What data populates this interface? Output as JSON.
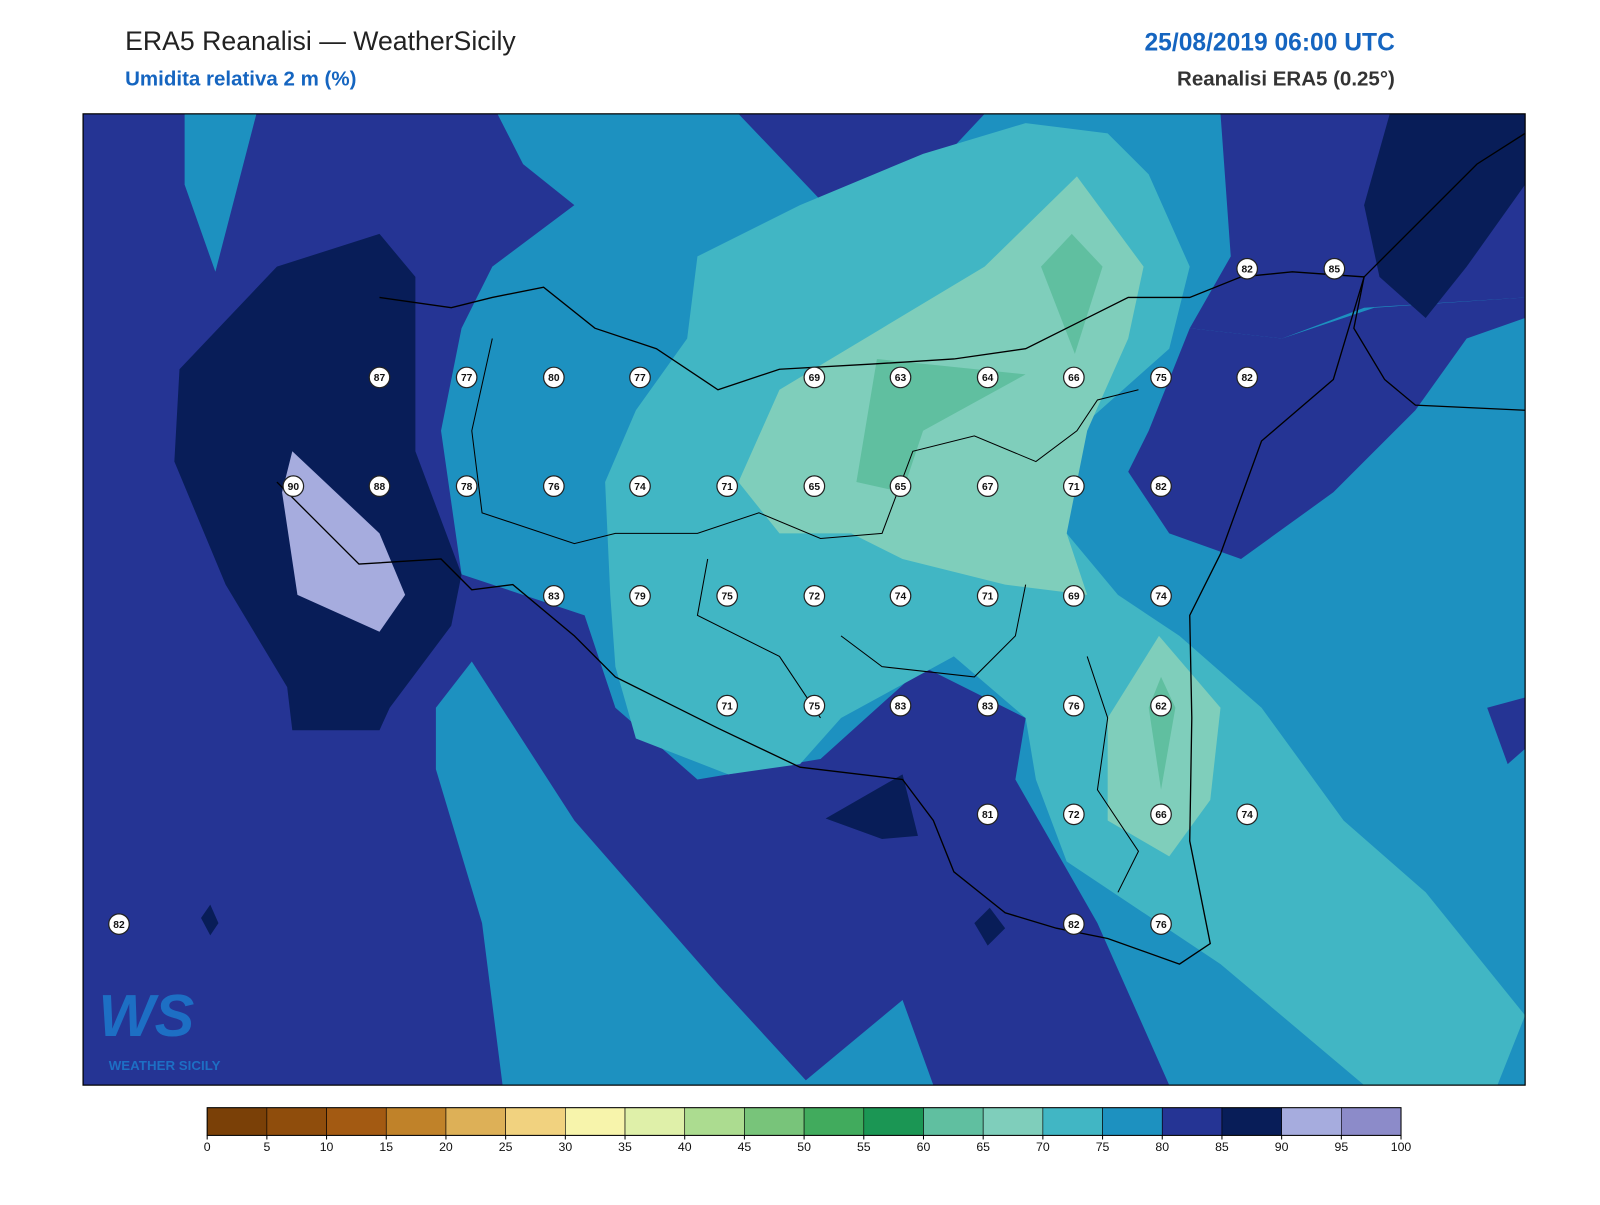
{
  "header": {
    "title": "ERA5 Reanalisi — WeatherSicily",
    "subtitle": "Umidita relativa 2 m (%)",
    "datetime": "25/08/2019 06:00 UTC",
    "source": "Reanalisi ERA5 (0.25°)"
  },
  "logo": {
    "mark": "WS",
    "text": "WEATHER SICILY"
  },
  "stations": [
    82,
    85,
    87,
    77,
    80,
    77,
    69,
    63,
    64,
    66,
    75,
    82,
    90,
    88,
    78,
    76,
    74,
    71,
    65,
    65,
    67,
    71,
    82,
    83,
    79,
    75,
    72,
    74,
    71,
    69,
    74,
    71,
    75,
    83,
    83,
    76,
    62,
    81,
    72,
    66,
    74,
    82,
    82,
    76
  ],
  "colorbar": {
    "ticks": [
      0,
      5,
      10,
      15,
      20,
      25,
      30,
      35,
      40,
      45,
      50,
      55,
      60,
      65,
      70,
      75,
      80,
      85,
      90,
      95,
      100
    ],
    "colors": [
      "#7a4007",
      "#8f4d0c",
      "#a35a12",
      "#c08229",
      "#ddb057",
      "#f1d27f",
      "#f7f4ab",
      "#dff0a9",
      "#acdc90",
      "#78c47a",
      "#41ab5d",
      "#1b9654",
      "#60bfa0",
      "#7fcebb",
      "#41b6c4",
      "#1d91c0",
      "#253494",
      "#081d58",
      "#a6acde",
      "#8c8bc9"
    ]
  }
}
